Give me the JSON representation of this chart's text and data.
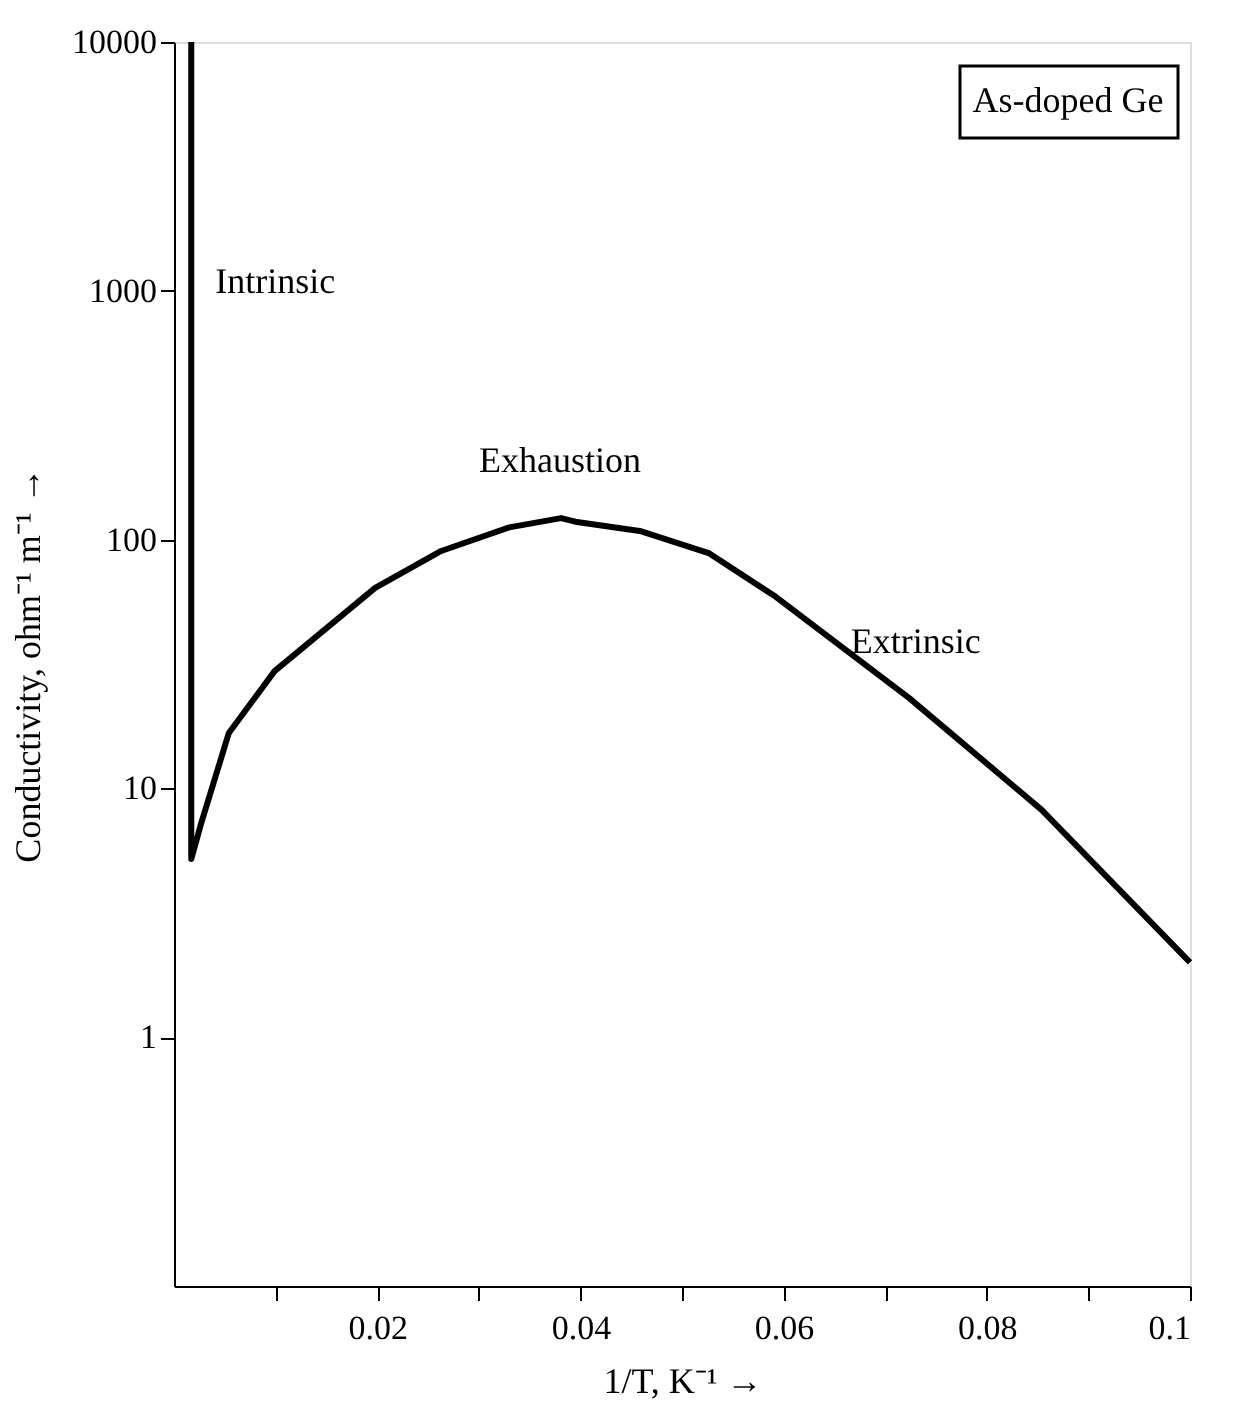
{
  "chart_data": {
    "type": "line",
    "xlabel": "1/T, K⁻¹ →",
    "ylabel": "Conductivity, ohm⁻¹ m⁻¹ →",
    "x": [
      0.0017,
      0.0017,
      0.0027,
      0.0054,
      0.0099,
      0.0198,
      0.0263,
      0.033,
      0.0381,
      0.0395,
      0.046,
      0.0527,
      0.0592,
      0.0724,
      0.0854,
      0.1
    ],
    "series": [
      {
        "color": "#000000",
        "values": [
          10000,
          5.2,
          7.3,
          16.7,
          29.6,
          64,
          90,
          112,
          122,
          118,
          108,
          88,
          59,
          23,
          8.2,
          2.0
        ]
      }
    ],
    "xlim": [
      0,
      0.1
    ],
    "ylim": [
      0.1,
      10000
    ],
    "log": "y",
    "grid": false,
    "legend": false,
    "marker": "none",
    "line_style": "solid",
    "xticks": [
      {
        "value": 0.01,
        "label": null
      },
      0.02,
      {
        "value": 0.03,
        "label": null
      },
      0.04,
      {
        "value": 0.05,
        "label": null
      },
      0.06,
      {
        "value": 0.07,
        "label": null
      },
      0.08,
      {
        "value": 0.09,
        "label": null
      },
      0.1
    ],
    "yticks": [
      1,
      10,
      100,
      1000,
      10000
    ],
    "annotations": [
      {
        "text": "Intrinsic",
        "x": 0.0017,
        "y": 1500
      },
      {
        "text": "Exhaustion",
        "x": 0.038,
        "y": 122
      },
      {
        "text": "Extrinsic",
        "x": 0.073,
        "y": 22
      },
      "As-doped Ge"
    ]
  }
}
